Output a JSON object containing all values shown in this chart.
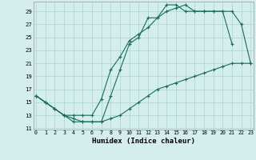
{
  "xlabel": "Humidex (Indice chaleur)",
  "bg_color": "#d4eeee",
  "grid_color": "#aad4d4",
  "line_color": "#1a6b5a",
  "ylim": [
    11,
    30
  ],
  "xlim": [
    0,
    23
  ],
  "yticks": [
    11,
    13,
    15,
    17,
    19,
    21,
    23,
    25,
    27,
    29
  ],
  "xticks": [
    0,
    1,
    2,
    3,
    4,
    5,
    6,
    7,
    8,
    9,
    10,
    11,
    12,
    13,
    14,
    15,
    16,
    17,
    18,
    19,
    20,
    21,
    22,
    23
  ],
  "curve_upper_x": [
    0,
    1,
    2,
    3,
    4,
    5,
    6,
    7,
    8,
    9,
    10,
    11,
    12,
    13,
    14,
    15,
    16,
    17,
    18,
    19,
    20,
    21
  ],
  "curve_upper_y": [
    16,
    15,
    14,
    13,
    12,
    12,
    12,
    12,
    16,
    20,
    24,
    25,
    28,
    28,
    30,
    30,
    29,
    29,
    29,
    29,
    29,
    24
  ],
  "curve_lower_x": [
    0,
    1,
    2,
    3,
    4,
    5,
    6,
    7,
    8,
    9,
    10,
    11,
    12,
    13,
    14,
    15,
    16,
    17,
    18,
    19,
    20,
    21,
    22,
    23
  ],
  "curve_lower_y": [
    16,
    15,
    14,
    13,
    12.5,
    12,
    12,
    12,
    12.5,
    13,
    14,
    15,
    16,
    17,
    17.5,
    18,
    18.5,
    19,
    19.5,
    20,
    20.5,
    21,
    21,
    21
  ],
  "curve_mid_x": [
    0,
    1,
    2,
    3,
    4,
    5,
    6,
    7,
    8,
    9,
    10,
    11,
    12,
    13,
    14,
    15,
    16,
    17,
    18,
    19,
    20,
    21,
    22,
    23
  ],
  "curve_mid_y": [
    16,
    15,
    14,
    13,
    13,
    13,
    13,
    15.5,
    20,
    22,
    24.5,
    25.5,
    26.5,
    28,
    29,
    29.5,
    30,
    29,
    29,
    29,
    29,
    29,
    27,
    21
  ]
}
